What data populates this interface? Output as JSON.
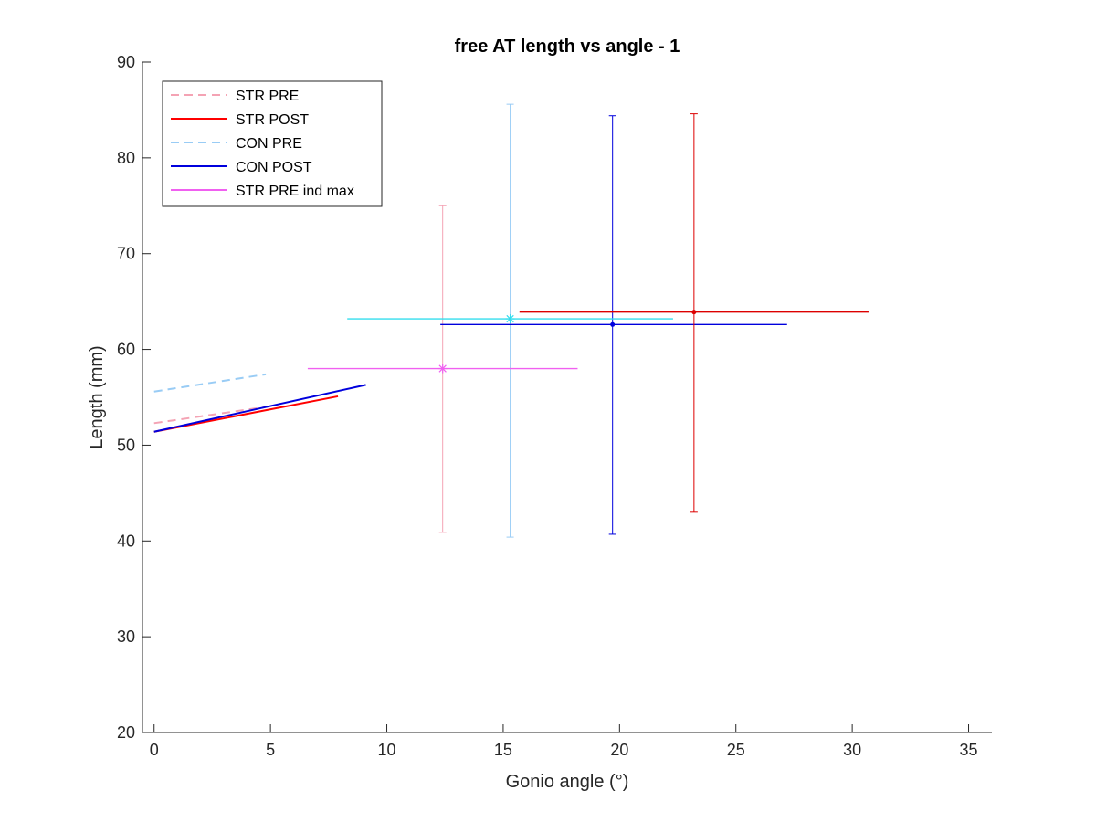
{
  "chart_data": {
    "type": "line",
    "title": "free AT length vs angle - 1",
    "xlabel": "Gonio angle (°)",
    "ylabel": "Length (mm)",
    "xlim": [
      -0.5,
      36
    ],
    "ylim": [
      20,
      90
    ],
    "xticks": [
      0,
      5,
      10,
      15,
      20,
      25,
      30,
      35
    ],
    "yticks": [
      20,
      30,
      40,
      50,
      60,
      70,
      80,
      90
    ],
    "grid": false,
    "legend_position": "top-left",
    "series": [
      {
        "name": "STR PRE",
        "color": "#f4a3b4",
        "style": "dashed",
        "x": [
          0,
          4.8
        ],
        "y": [
          52.3,
          54.0
        ]
      },
      {
        "name": "STR POST",
        "color": "#ff0000",
        "style": "solid",
        "x": [
          0,
          7.9
        ],
        "y": [
          51.4,
          55.1
        ]
      },
      {
        "name": "CON PRE",
        "color": "#99ccf5",
        "style": "dashed",
        "x": [
          0,
          4.8
        ],
        "y": [
          55.6,
          57.4
        ]
      },
      {
        "name": "CON POST",
        "color": "#0000dd",
        "style": "solid",
        "x": [
          0,
          9.1
        ],
        "y": [
          51.4,
          56.3
        ]
      },
      {
        "name": "STR PRE ind max",
        "color": "#f060f0",
        "style": "solid",
        "x": [],
        "y": []
      }
    ],
    "error_points": [
      {
        "color": "#f4a3b4",
        "x": 12.4,
        "y": 58.0,
        "y_low": 40.9,
        "y_high": 75.0,
        "x_low": null,
        "x_high": null,
        "marker": "none"
      },
      {
        "color": "#99ccf5",
        "x": 15.3,
        "y": 63.2,
        "y_low": 40.4,
        "y_high": 85.6,
        "x_low": null,
        "x_high": null,
        "marker": "none"
      },
      {
        "color": "#0000dd",
        "x": 19.7,
        "y": 62.6,
        "y_low": 40.7,
        "y_high": 84.4,
        "x_low": 12.3,
        "x_high": 27.2,
        "marker": "dot"
      },
      {
        "color": "#dd0000",
        "x": 23.2,
        "y": 63.9,
        "y_low": 43.0,
        "y_high": 84.6,
        "x_low": 15.7,
        "x_high": 30.7,
        "marker": "dot"
      },
      {
        "color": "#f060f0",
        "x": 12.4,
        "y": 58.0,
        "y_low": null,
        "y_high": null,
        "x_low": 6.6,
        "x_high": 18.2,
        "marker": "star"
      },
      {
        "color": "#33ddee",
        "x": 15.3,
        "y": 63.2,
        "y_low": null,
        "y_high": null,
        "x_low": 8.3,
        "x_high": 22.3,
        "marker": "star"
      }
    ]
  }
}
